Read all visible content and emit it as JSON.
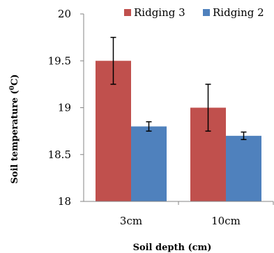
{
  "chart_data": {
    "type": "bar",
    "title": "",
    "xlabel": "Soil depth (cm)",
    "ylabel_prefix": "Soil temperature (",
    "ylabel_sup": "0",
    "ylabel_suffix": "C)",
    "categories": [
      "3cm",
      "10cm"
    ],
    "ylim": [
      18,
      20
    ],
    "yticks": [
      "18",
      "18.5",
      "19",
      "19.5",
      "20"
    ],
    "grid": false,
    "legend_position": "top-right",
    "series": [
      {
        "name": "Ridging 3",
        "color": "#c0504d",
        "values": [
          19.5,
          19.0
        ],
        "error": [
          0.25,
          0.25
        ]
      },
      {
        "name": "Ridging 2",
        "color": "#4f81bd",
        "values": [
          18.8,
          18.7
        ],
        "error": [
          0.05,
          0.04
        ]
      }
    ]
  }
}
